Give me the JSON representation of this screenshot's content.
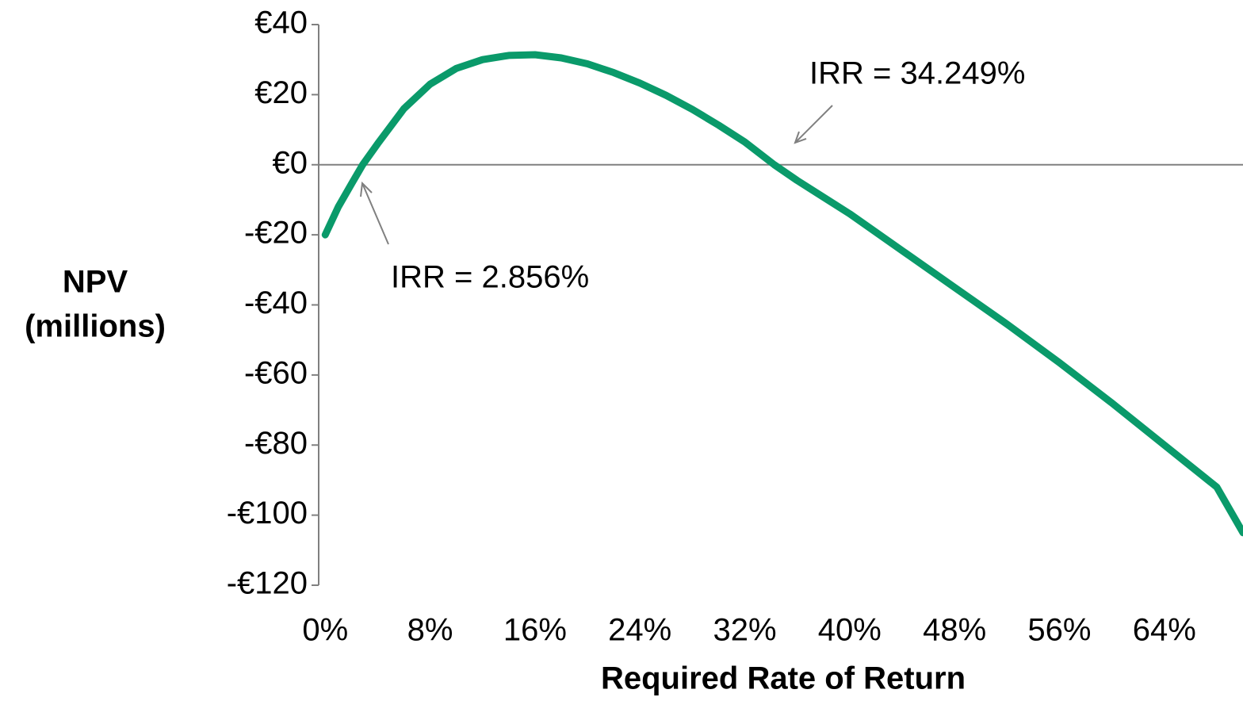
{
  "chart_data": {
    "type": "line",
    "xlabel": "Required Rate of Return",
    "ylabel": [
      "NPV",
      "(millions)"
    ],
    "x": [
      0,
      1,
      2,
      2.856,
      4,
      6,
      8,
      10,
      12,
      14,
      16,
      18,
      20,
      22,
      24,
      26,
      28,
      30,
      32,
      34.249,
      36,
      40,
      44,
      48,
      52,
      56,
      60,
      64,
      68,
      70
    ],
    "series": [
      {
        "name": "NPV",
        "color": "#0a9a6a",
        "values": [
          -20,
          -12,
          -5.5,
          0,
          6,
          16,
          23,
          27.5,
          30,
          31.2,
          31.4,
          30.5,
          28.8,
          26.3,
          23.3,
          19.8,
          15.8,
          11.3,
          6.5,
          0,
          -4.5,
          -14,
          -24.5,
          -35,
          -45.5,
          -56.5,
          -68,
          -80,
          -92,
          -105
        ]
      }
    ],
    "xlim": [
      -0.5,
      70
    ],
    "ylim": [
      -120,
      40
    ],
    "xticks": [
      {
        "value": 0,
        "label": "0%"
      },
      {
        "value": 8,
        "label": "8%"
      },
      {
        "value": 16,
        "label": "16%"
      },
      {
        "value": 24,
        "label": "24%"
      },
      {
        "value": 32,
        "label": "32%"
      },
      {
        "value": 40,
        "label": "40%"
      },
      {
        "value": 48,
        "label": "48%"
      },
      {
        "value": 56,
        "label": "56%"
      },
      {
        "value": 64,
        "label": "64%"
      }
    ],
    "yticks": [
      {
        "value": 40,
        "label": "€40"
      },
      {
        "value": 20,
        "label": "€20"
      },
      {
        "value": 0,
        "label": "€0"
      },
      {
        "value": -20,
        "label": "-€20"
      },
      {
        "value": -40,
        "label": "-€40"
      },
      {
        "value": -60,
        "label": "-€60"
      },
      {
        "value": -80,
        "label": "-€80"
      },
      {
        "value": -100,
        "label": "-€100"
      },
      {
        "value": -120,
        "label": "-€120"
      }
    ],
    "annotations": [
      "IRR = 2.856%",
      "IRR = 34.249%"
    ]
  }
}
